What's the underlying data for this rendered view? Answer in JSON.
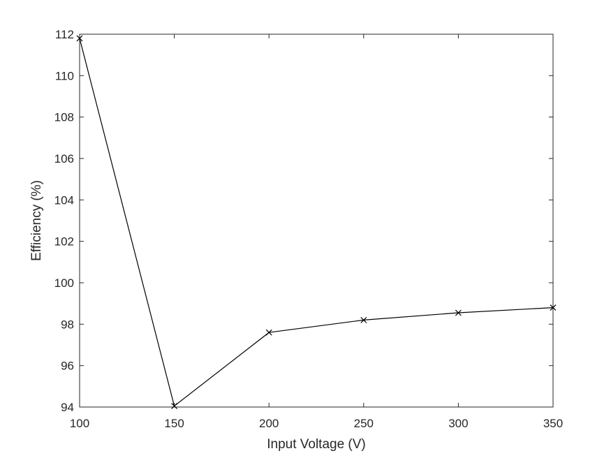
{
  "chart_data": {
    "type": "line",
    "xlabel": "Input Voltage (V)",
    "ylabel": "Efficiency (%)",
    "xlim": [
      100,
      350
    ],
    "ylim": [
      94,
      112
    ],
    "xticks": [
      100,
      150,
      200,
      250,
      300,
      350
    ],
    "yticks": [
      94,
      96,
      98,
      100,
      102,
      104,
      106,
      108,
      110,
      112
    ],
    "grid": false,
    "marker": "x",
    "line_color": "#000000",
    "series": [
      {
        "x": [
          100,
          150,
          200,
          250,
          300,
          350
        ],
        "values": [
          111.8,
          94.05,
          97.6,
          98.2,
          98.55,
          98.8
        ]
      }
    ]
  }
}
